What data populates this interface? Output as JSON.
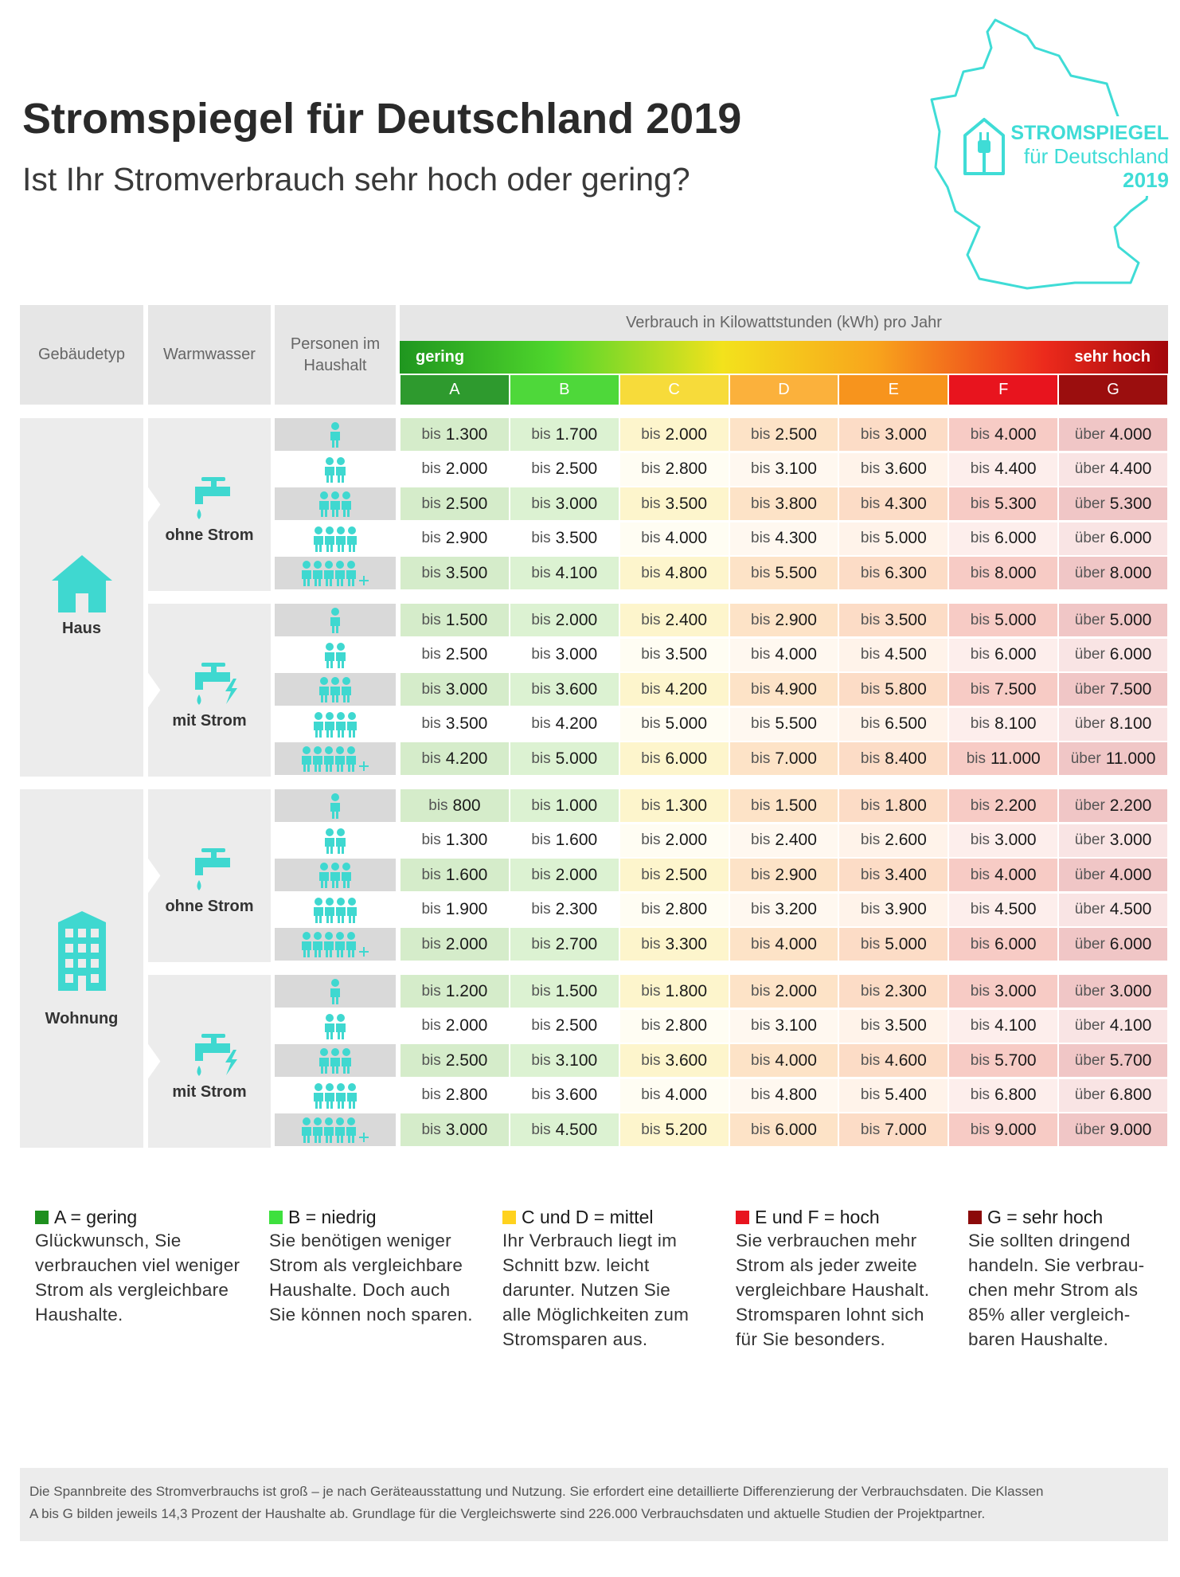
{
  "header": {
    "title": "Stromspiegel für Deutschland 2019",
    "subtitle": "Ist Ihr Stromverbrauch sehr hoch oder gering?"
  },
  "logo": {
    "line1": "STROMSPIEGEL",
    "line2": "für Deutschland",
    "line3": "2019"
  },
  "table": {
    "col_headers": [
      "Gebäudetyp",
      "Warmwasser",
      "Personen im Haushalt"
    ],
    "consumption_header": "Verbrauch in Kilowattstunden (kWh) pro Jahr",
    "scale_low": "gering",
    "scale_high": "sehr hoch",
    "classes": [
      {
        "label": "A",
        "prefix": "bis"
      },
      {
        "label": "B",
        "prefix": "bis"
      },
      {
        "label": "C",
        "prefix": "bis"
      },
      {
        "label": "D",
        "prefix": "bis"
      },
      {
        "label": "E",
        "prefix": "bis"
      },
      {
        "label": "F",
        "prefix": "bis"
      },
      {
        "label": "G",
        "prefix": "über"
      }
    ],
    "groups": [
      {
        "label": "Haus",
        "subgroups": [
          {
            "label": "ohne Strom",
            "rows": [
              [
                "1.300",
                "1.700",
                "2.000",
                "2.500",
                "3.000",
                "4.000",
                "4.000"
              ],
              [
                "2.000",
                "2.500",
                "2.800",
                "3.100",
                "3.600",
                "4.400",
                "4.400"
              ],
              [
                "2.500",
                "3.000",
                "3.500",
                "3.800",
                "4.300",
                "5.300",
                "5.300"
              ],
              [
                "2.900",
                "3.500",
                "4.000",
                "4.300",
                "5.000",
                "6.000",
                "6.000"
              ],
              [
                "3.500",
                "4.100",
                "4.800",
                "5.500",
                "6.300",
                "8.000",
                "8.000"
              ]
            ]
          },
          {
            "label": "mit Strom",
            "rows": [
              [
                "1.500",
                "2.000",
                "2.400",
                "2.900",
                "3.500",
                "5.000",
                "5.000"
              ],
              [
                "2.500",
                "3.000",
                "3.500",
                "4.000",
                "4.500",
                "6.000",
                "6.000"
              ],
              [
                "3.000",
                "3.600",
                "4.200",
                "4.900",
                "5.800",
                "7.500",
                "7.500"
              ],
              [
                "3.500",
                "4.200",
                "5.000",
                "5.500",
                "6.500",
                "8.100",
                "8.100"
              ],
              [
                "4.200",
                "5.000",
                "6.000",
                "7.000",
                "8.400",
                "11.000",
                "11.000"
              ]
            ]
          }
        ]
      },
      {
        "label": "Wohnung",
        "subgroups": [
          {
            "label": "ohne Strom",
            "rows": [
              [
                "800",
                "1.000",
                "1.300",
                "1.500",
                "1.800",
                "2.200",
                "2.200"
              ],
              [
                "1.300",
                "1.600",
                "2.000",
                "2.400",
                "2.600",
                "3.000",
                "3.000"
              ],
              [
                "1.600",
                "2.000",
                "2.500",
                "2.900",
                "3.400",
                "4.000",
                "4.000"
              ],
              [
                "1.900",
                "2.300",
                "2.800",
                "3.200",
                "3.900",
                "4.500",
                "4.500"
              ],
              [
                "2.000",
                "2.700",
                "3.300",
                "4.000",
                "5.000",
                "6.000",
                "6.000"
              ]
            ]
          },
          {
            "label": "mit Strom",
            "rows": [
              [
                "1.200",
                "1.500",
                "1.800",
                "2.000",
                "2.300",
                "3.000",
                "3.000"
              ],
              [
                "2.000",
                "2.500",
                "2.800",
                "3.100",
                "3.500",
                "4.100",
                "4.100"
              ],
              [
                "2.500",
                "3.100",
                "3.600",
                "4.000",
                "4.600",
                "5.700",
                "5.700"
              ],
              [
                "2.800",
                "3.600",
                "4.000",
                "4.800",
                "5.400",
                "6.800",
                "6.800"
              ],
              [
                "3.000",
                "4.500",
                "5.200",
                "6.000",
                "7.000",
                "9.000",
                "9.000"
              ]
            ]
          }
        ]
      }
    ]
  },
  "legend": [
    {
      "title": "A = gering",
      "lines": [
        "Glückwunsch, Sie",
        "verbrauchen viel weniger",
        "Strom als vergleichbare",
        "Haushalte."
      ]
    },
    {
      "title": "B = niedrig",
      "lines": [
        "Sie benötigen weniger",
        "Strom als vergleichbare",
        "Haushalte. Doch auch",
        "Sie können noch sparen."
      ]
    },
    {
      "title": "C und D = mittel",
      "lines": [
        "Ihr Verbrauch liegt im",
        "Schnitt bzw. leicht",
        "darunter. Nutzen Sie",
        "alle Möglichkeiten zum",
        "Stromsparen aus."
      ]
    },
    {
      "title": "E und F = hoch",
      "lines": [
        "Sie verbrauchen mehr",
        "Strom als jeder zweite",
        "vergleichbare Haushalt.",
        "Stromsparen lohnt sich",
        "für Sie besonders."
      ]
    },
    {
      "title": "G = sehr hoch",
      "lines": [
        "Sie sollten dringend",
        "handeln. Sie verbrau-",
        "chen mehr Strom als",
        "85% aller vergleich-",
        "baren Haushalte."
      ]
    }
  ],
  "footnote": [
    "Die Spannbreite des Stromverbrauchs ist groß – je nach Geräteausstattung und Nutzung. Sie erfordert eine detaillierte Differenzierung der Verbrauchsdaten. Die Klassen",
    "A bis G bilden jeweils 14,3 Prozent der Haushalte ab. Grundlage für die Vergleichswerte sind 226.000 Verbrauchsdaten und aktuelle Studien der Projektpartner."
  ]
}
